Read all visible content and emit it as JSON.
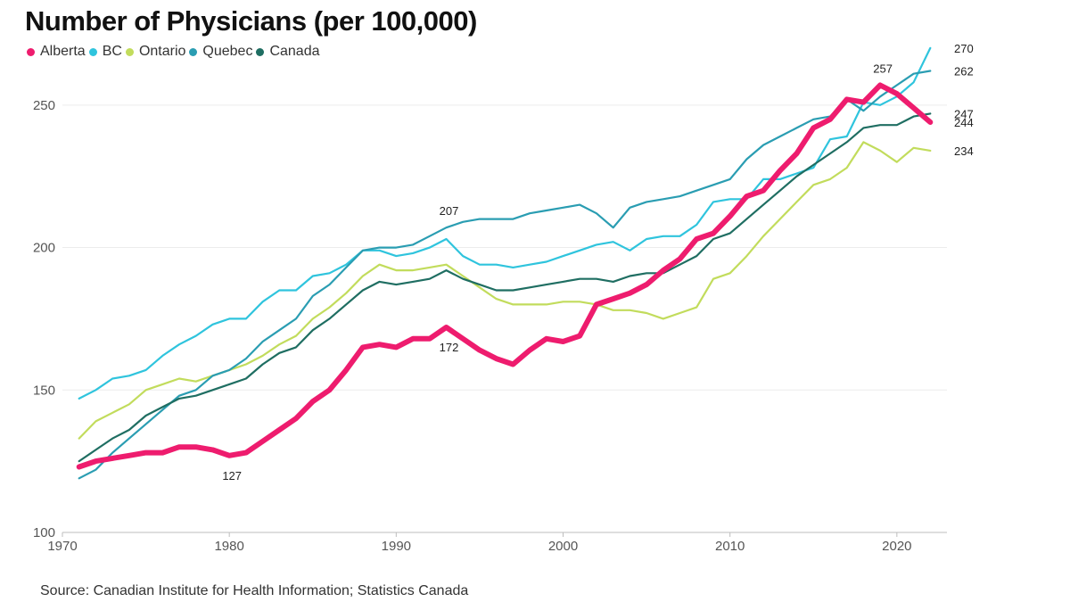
{
  "chart_data": {
    "type": "line",
    "title": "Number of Physicians (per 100,000)",
    "source": "Source: Canadian Institute for Health Information; Statistics Canada",
    "xlabel": "",
    "ylabel": "",
    "xlim": [
      1970,
      2023
    ],
    "ylim": [
      100,
      280
    ],
    "x_ticks": [
      1970,
      1980,
      1990,
      2000,
      2010,
      2020
    ],
    "y_ticks": [
      100,
      150,
      200,
      250
    ],
    "grid": "horizontal",
    "legend_position": "top-left",
    "x": [
      1971,
      1972,
      1973,
      1974,
      1975,
      1976,
      1977,
      1978,
      1979,
      1980,
      1981,
      1982,
      1983,
      1984,
      1985,
      1986,
      1987,
      1988,
      1989,
      1990,
      1991,
      1992,
      1993,
      1994,
      1995,
      1996,
      1997,
      1998,
      1999,
      2000,
      2001,
      2002,
      2003,
      2004,
      2005,
      2006,
      2007,
      2008,
      2009,
      2010,
      2011,
      2012,
      2013,
      2014,
      2015,
      2016,
      2017,
      2018,
      2019,
      2020,
      2021,
      2022
    ],
    "series": [
      {
        "name": "Alberta",
        "color": "#ee1c6e",
        "emphasis": true,
        "values": [
          123,
          125,
          126,
          127,
          128,
          128,
          130,
          130,
          129,
          127,
          128,
          132,
          136,
          140,
          146,
          150,
          157,
          165,
          166,
          165,
          168,
          168,
          172,
          168,
          164,
          161,
          159,
          164,
          168,
          167,
          169,
          180,
          182,
          184,
          187,
          192,
          196,
          203,
          205,
          211,
          218,
          220,
          227,
          233,
          242,
          245,
          252,
          251,
          257,
          254,
          249,
          244
        ]
      },
      {
        "name": "BC",
        "color": "#2fc4dd",
        "emphasis": false,
        "values": [
          147,
          150,
          154,
          155,
          157,
          162,
          166,
          169,
          173,
          175,
          175,
          181,
          185,
          185,
          190,
          191,
          194,
          199,
          199,
          197,
          198,
          200,
          203,
          197,
          194,
          194,
          193,
          194,
          195,
          197,
          199,
          201,
          202,
          199,
          203,
          204,
          204,
          208,
          216,
          217,
          217,
          224,
          224,
          226,
          228,
          238,
          239,
          251,
          250,
          253,
          258,
          270
        ]
      },
      {
        "name": "Ontario",
        "color": "#c2dc5c",
        "emphasis": false,
        "values": [
          133,
          139,
          142,
          145,
          150,
          152,
          154,
          153,
          155,
          157,
          159,
          162,
          166,
          169,
          175,
          179,
          184,
          190,
          194,
          192,
          192,
          193,
          194,
          190,
          186,
          182,
          180,
          180,
          180,
          181,
          181,
          180,
          178,
          178,
          177,
          175,
          177,
          179,
          189,
          191,
          197,
          204,
          210,
          216,
          222,
          224,
          228,
          237,
          234,
          230,
          235,
          234
        ]
      },
      {
        "name": "Quebec",
        "color": "#2a9db2",
        "emphasis": false,
        "values": [
          119,
          122,
          128,
          133,
          138,
          143,
          148,
          150,
          155,
          157,
          161,
          167,
          171,
          175,
          183,
          187,
          193,
          199,
          200,
          200,
          201,
          204,
          207,
          209,
          210,
          210,
          210,
          212,
          213,
          214,
          215,
          212,
          207,
          214,
          216,
          217,
          218,
          220,
          222,
          224,
          231,
          236,
          239,
          242,
          245,
          246,
          252,
          248,
          253,
          257,
          261,
          262
        ]
      },
      {
        "name": "Canada",
        "color": "#1f6e62",
        "emphasis": false,
        "values": [
          125,
          129,
          133,
          136,
          141,
          144,
          147,
          148,
          150,
          152,
          154,
          159,
          163,
          165,
          171,
          175,
          180,
          185,
          188,
          187,
          188,
          189,
          192,
          189,
          187,
          185,
          185,
          186,
          187,
          188,
          189,
          189,
          188,
          190,
          191,
          191,
          194,
          197,
          203,
          205,
          210,
          215,
          220,
          225,
          229,
          233,
          237,
          242,
          243,
          243,
          246,
          247
        ]
      }
    ],
    "annotations": [
      {
        "x": 1980,
        "y": 127,
        "text": "127",
        "position": "below"
      },
      {
        "x": 1993,
        "y": 172,
        "text": "172",
        "position": "below"
      },
      {
        "x": 1993,
        "y": 207,
        "text": "207",
        "position": "above"
      },
      {
        "x": 2019,
        "y": 257,
        "text": "257",
        "position": "above"
      },
      {
        "x": 2022,
        "y": 270,
        "text": "270",
        "position": "right"
      },
      {
        "x": 2022,
        "y": 262,
        "text": "262",
        "position": "right"
      },
      {
        "x": 2022,
        "y": 247,
        "text": "247",
        "position": "right"
      },
      {
        "x": 2022,
        "y": 244,
        "text": "244",
        "position": "right"
      },
      {
        "x": 2022,
        "y": 234,
        "text": "234",
        "position": "right"
      }
    ]
  }
}
